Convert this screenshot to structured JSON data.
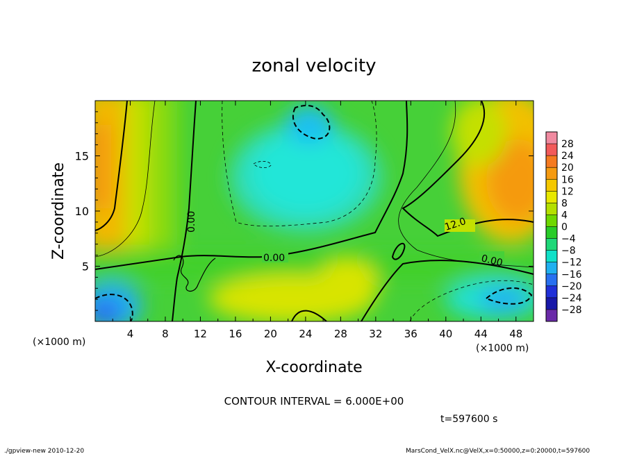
{
  "chart_data": {
    "type": "heatmap",
    "title": "zonal velocity",
    "xlabel": "X-coordinate",
    "ylabel": "Z-coordinate",
    "x_unit": "(×1000 m)",
    "y_unit": "(×1000 m)",
    "xlim": [
      0,
      50
    ],
    "ylim": [
      0,
      20
    ],
    "x_ticks": [
      "4",
      "8",
      "12",
      "16",
      "20",
      "24",
      "28",
      "32",
      "36",
      "40",
      "44",
      "48"
    ],
    "y_ticks": [
      "5",
      "10",
      "15"
    ],
    "colorbar": {
      "levels": [
        "28",
        "24",
        "20",
        "16",
        "12",
        "8",
        "4",
        "0",
        "−4",
        "−8",
        "−12",
        "−16",
        "−20",
        "−24",
        "−28"
      ],
      "colors": [
        "#f08aa0",
        "#f25a5a",
        "#f57a20",
        "#f59a10",
        "#f5c800",
        "#e8e800",
        "#b4e000",
        "#6ed800",
        "#28cc28",
        "#1ed878",
        "#10e0c8",
        "#20b0f0",
        "#2870f0",
        "#2030d8",
        "#1818a8",
        "#6a2aa8"
      ]
    },
    "contour_labels": [
      "0.00",
      "0.00",
      "12.0",
      "0.00"
    ],
    "contour_interval_text": "CONTOUR INTERVAL = 6.000E+00",
    "time_text": "t=597600  s"
  },
  "footer": {
    "left": "./gpview-new  2010-12-20",
    "right": "MarsCond_VelX.nc@VelX,x=0:50000,z=0:20000,t=597600"
  }
}
